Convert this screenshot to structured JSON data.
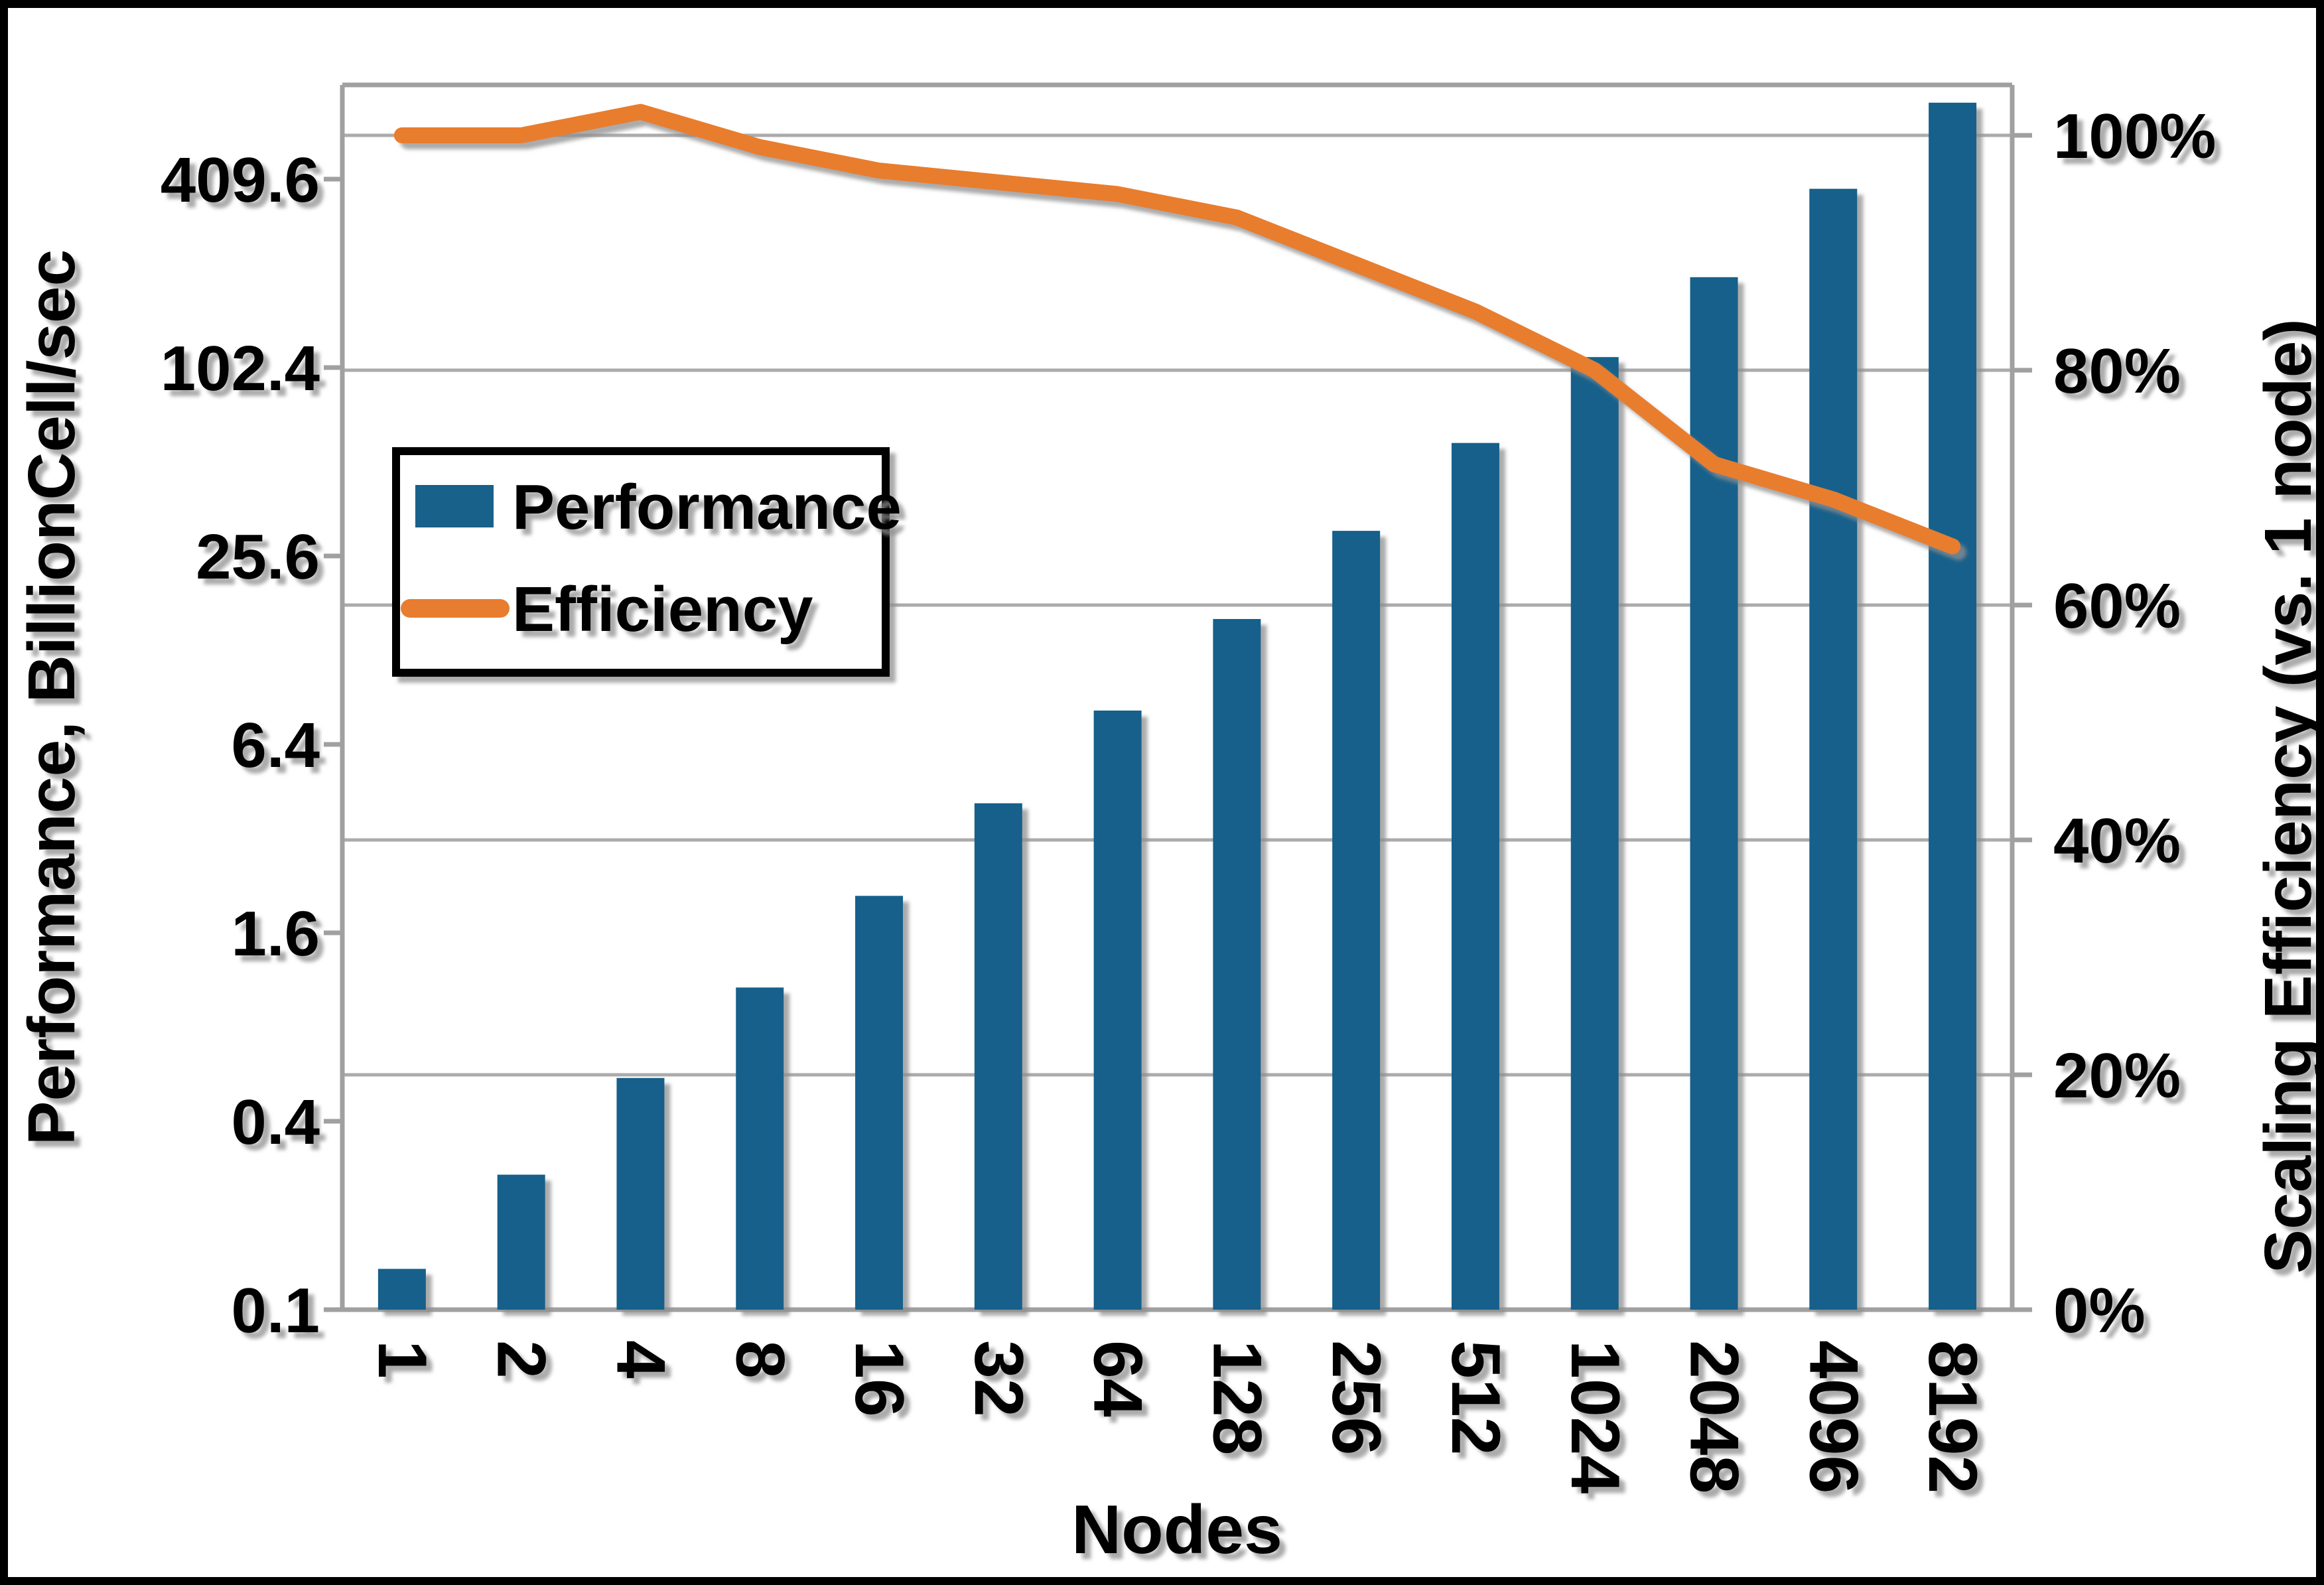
{
  "chart_data": {
    "type": "combo-bar-line",
    "title": "",
    "categories": [
      "1",
      "2",
      "4",
      "8",
      "16",
      "32",
      "64",
      "128",
      "256",
      "512",
      "1024",
      "2048",
      "4096",
      "8192"
    ],
    "series": [
      {
        "name": "Performance",
        "type": "bar",
        "axis": "left",
        "color": "#17618B",
        "values": [
          0.135,
          0.27,
          0.55,
          1.07,
          2.1,
          4.15,
          8.21,
          16.1,
          30.8,
          58.8,
          110.6,
          199.1,
          381.5,
          718.8
        ]
      },
      {
        "name": "Efficiency",
        "type": "line",
        "axis": "right",
        "color": "#E87D2F",
        "values_percent": [
          100,
          100,
          102,
          99,
          97,
          96,
          95,
          93,
          89,
          85,
          80,
          72,
          69,
          65
        ]
      }
    ],
    "left_axis": {
      "title": "Performance, BillionCell/sec",
      "scale": "log-base-4",
      "min": 0.1,
      "max": 819.2,
      "tick_labels": [
        "0.1",
        "0.4",
        "1.6",
        "6.4",
        "25.6",
        "102.4",
        "409.6"
      ]
    },
    "right_axis": {
      "title": "Scaling Efficiency (vs. 1 node)",
      "scale": "linear",
      "min_percent": 0,
      "max_percent": 104,
      "tick_labels": [
        "0%",
        "20%",
        "40%",
        "60%",
        "80%",
        "100%"
      ]
    },
    "x_axis": {
      "title": "Nodes",
      "tick_rotation_deg": 90
    },
    "legend": {
      "position": "inside-upper-left",
      "performance_label": "Performance",
      "efficiency_label": "Efficiency"
    },
    "grid": "horizontal-major",
    "colors": {
      "bar": "#17618B",
      "line": "#E87D2F",
      "gridline": "#ABABAB",
      "axis_line": "#A0A0A0",
      "text": "#000000",
      "background": "#FFFFFF",
      "frame": "#000000",
      "shadow": "#8F8F8F"
    }
  }
}
